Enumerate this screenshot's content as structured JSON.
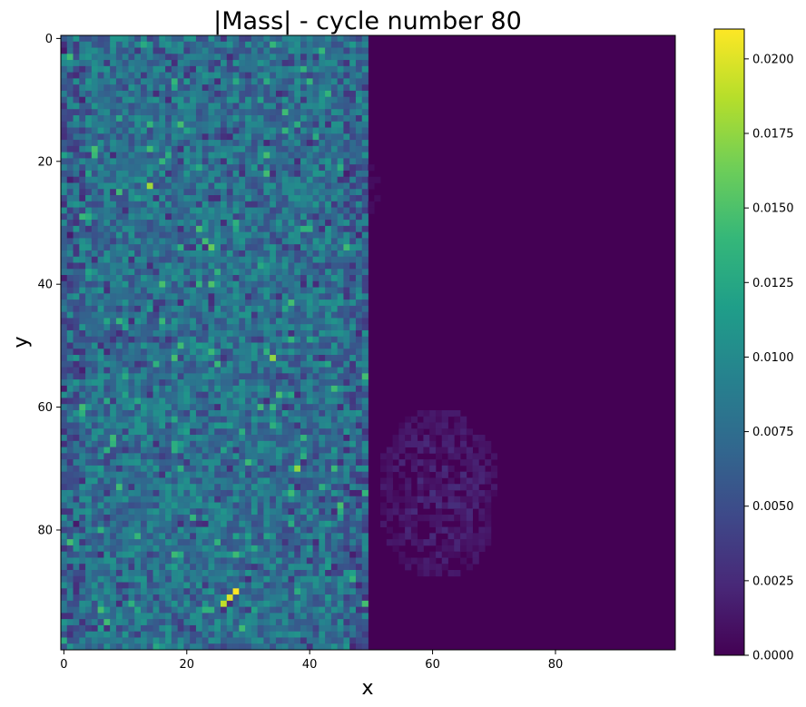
{
  "chart_data": {
    "type": "heatmap",
    "title": "|Mass| - cycle number 80",
    "xlabel": "x",
    "ylabel": "y",
    "grid_shape": [
      100,
      100
    ],
    "xlim": [
      -0.5,
      99.5
    ],
    "ylim": [
      99.5,
      -0.5
    ],
    "y_axis_inverted": true,
    "x_ticks": [
      0,
      20,
      40,
      60,
      80
    ],
    "x_tick_labels": [
      "0",
      "20",
      "40",
      "60",
      "80"
    ],
    "y_ticks": [
      0,
      20,
      40,
      60,
      80
    ],
    "y_tick_labels": [
      "0",
      "20",
      "40",
      "60",
      "80"
    ],
    "colormap": "viridis",
    "colormap_stops": [
      "#440154",
      "#482878",
      "#3e4989",
      "#31688e",
      "#26828e",
      "#1f9e89",
      "#35b779",
      "#6ece58",
      "#b5de2b",
      "#fde725"
    ],
    "colorbar": {
      "vmin": 0.0,
      "vmax": 0.021,
      "ticks": [
        0.0,
        0.0025,
        0.005,
        0.0075,
        0.01,
        0.0125,
        0.015,
        0.0175,
        0.02
      ],
      "tick_labels": [
        "0.0000",
        "0.0025",
        "0.0050",
        "0.0075",
        "0.0100",
        "0.0125",
        "0.0150",
        "0.0175",
        "0.0200"
      ]
    },
    "field_description": {
      "filled_region_x": [
        0,
        49
      ],
      "filled_region_typical_range": [
        0.003,
        0.013
      ],
      "right_region_value": 0.0,
      "hotspots": [
        {
          "x": 28,
          "y": 90,
          "value": 0.021
        },
        {
          "x": 27,
          "y": 91,
          "value": 0.02
        },
        {
          "x": 26,
          "y": 92,
          "value": 0.019
        },
        {
          "x": 14,
          "y": 24,
          "value": 0.018
        },
        {
          "x": 38,
          "y": 70,
          "value": 0.0175
        },
        {
          "x": 34,
          "y": 52,
          "value": 0.0175
        },
        {
          "x": 24,
          "y": 34,
          "value": 0.016
        },
        {
          "x": 24,
          "y": 40,
          "value": 0.015
        }
      ],
      "faint_blob": {
        "x_range": [
          51,
          71
        ],
        "y_range": [
          60,
          88
        ],
        "value_range": [
          0.0005,
          0.003
        ]
      }
    }
  }
}
